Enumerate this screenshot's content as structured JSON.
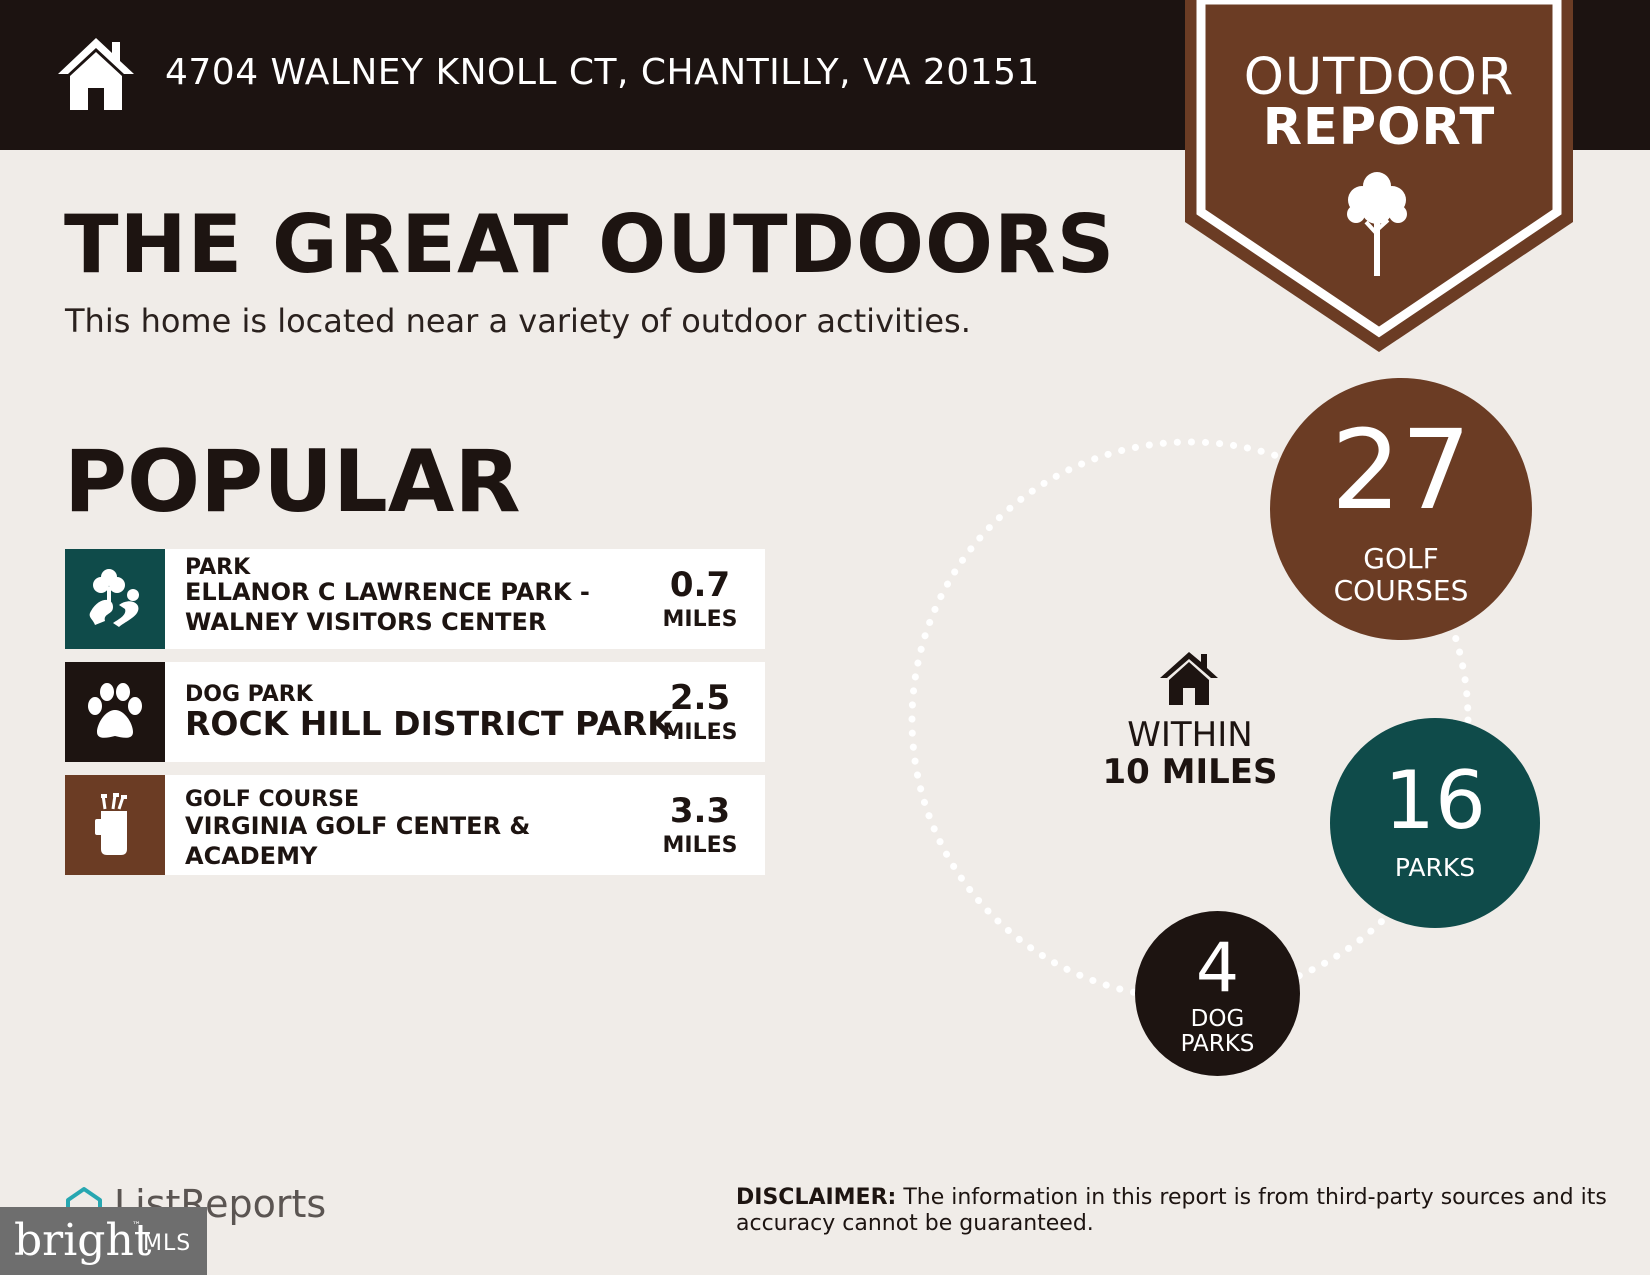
{
  "header": {
    "address": "4704 WALNEY KNOLL CT, CHANTILLY, VA 20151",
    "home_icon": "house-icon"
  },
  "banner": {
    "line1": "OUTDOOR",
    "line2": "REPORT",
    "icon": "tree-icon",
    "color": "#6b3c24"
  },
  "main": {
    "headline": "THE GREAT OUTDOORS",
    "subhead": "This home is located near a variety of outdoor activities."
  },
  "popular": {
    "title": "POPULAR",
    "items": [
      {
        "category": "PARK",
        "name_lines": [
          "ELLANOR C LAWRENCE PARK -",
          "WALNEY VISITORS CENTER"
        ],
        "distance": "0.7",
        "unit": "MILES",
        "icon": "park-trees-icon",
        "color": "#0f4b4a"
      },
      {
        "category": "DOG PARK",
        "name_lines": [
          "ROCK HILL DISTRICT PARK"
        ],
        "distance": "2.5",
        "unit": "MILES",
        "icon": "paw-icon",
        "color": "#1d1411"
      },
      {
        "category": "GOLF COURSE",
        "name_lines": [
          "VIRGINIA GOLF CENTER &",
          "ACADEMY"
        ],
        "distance": "3.3",
        "unit": "MILES",
        "icon": "golf-bag-icon",
        "color": "#6b3c24"
      }
    ]
  },
  "stats": {
    "within_line1": "WITHIN",
    "within_line2": "10 MILES",
    "golf": {
      "count": "27",
      "label_lines": [
        "GOLF",
        "COURSES"
      ],
      "color": "#6b3c24"
    },
    "parks": {
      "count": "16",
      "label_lines": [
        "PARKS"
      ],
      "color": "#0f4b4a"
    },
    "dogs": {
      "count": "4",
      "label_lines": [
        "DOG",
        "PARKS"
      ],
      "color": "#1d1411"
    }
  },
  "footer": {
    "brand": "ListReports",
    "bright_word": "bright",
    "bright_mls": "MLS",
    "bright_tm": "™",
    "disclaimer_label": "DISCLAIMER:",
    "disclaimer_text": " The information in this report is from third-party sources and its accuracy cannot be guaranteed."
  }
}
